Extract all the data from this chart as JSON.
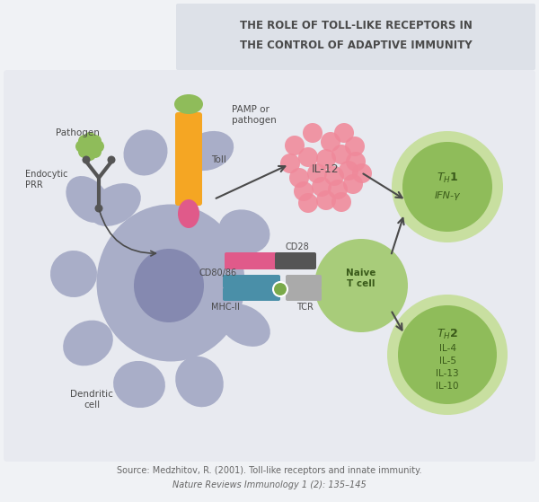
{
  "title_line1": "THE ROLE OF TOLL-LIKE RECEPTORS IN",
  "title_line2": "THE CONTROL OF ADAPTIVE IMMUNITY",
  "source_line1": "Source: Medzhitov, R. (2001). Toll-like receptors and innate immunity.",
  "source_line2": "Nature Reviews Immunology 1 (2): 135–145",
  "bg_color": "#f0f2f5",
  "title_bg": "#dde1e8",
  "main_bg": "#e8eaf0",
  "dendritic_color": "#a9aec8",
  "dendritic_nucleus_color": "#8589b0",
  "pamp_color": "#f5a623",
  "pathogen_color": "#8fbc5a",
  "toll_binding_color": "#e05a8a",
  "il12_color": "#f0899a",
  "cd28_color": "#e05a8a",
  "cd80_86_color": "#4a8fa8",
  "naive_t_color": "#a8cc7a",
  "naive_t_dark": "#7aaa4a",
  "th_circle_outer": "#c8dfa0",
  "th_circle_inner": "#8fbc5a",
  "text_color": "#4a4a4a",
  "arrow_color": "#4a4a4a",
  "endocytic_color": "#555555"
}
